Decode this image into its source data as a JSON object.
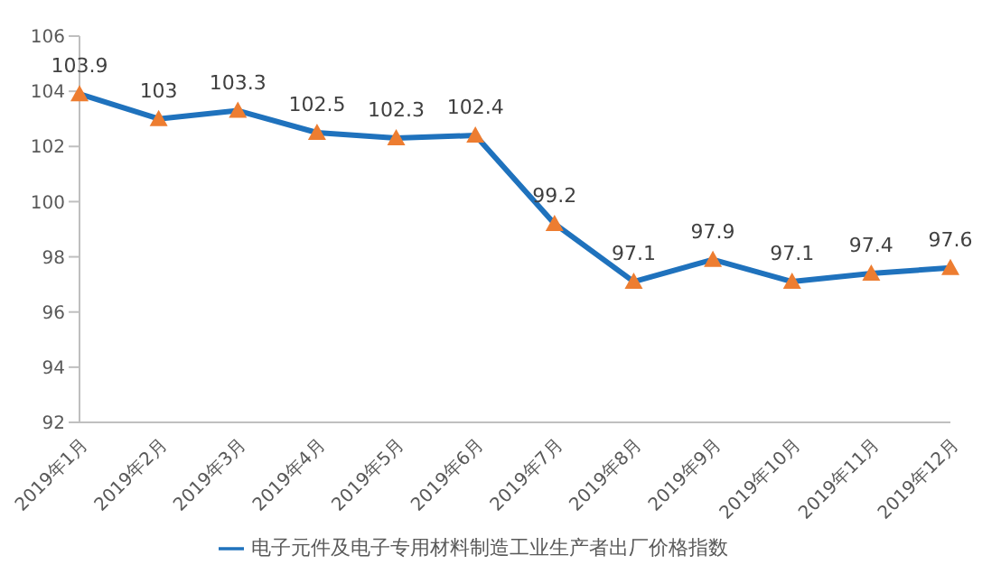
{
  "chart_data": {
    "type": "line",
    "categories": [
      "2019年1月",
      "2019年2月",
      "2019年3月",
      "2019年4月",
      "2019年5月",
      "2019年6月",
      "2019年7月",
      "2019年8月",
      "2019年9月",
      "2019年10月",
      "2019年11月",
      "2019年12月"
    ],
    "series": [
      {
        "name": "电子元件及电子专用材料制造工业生产者出厂价格指数",
        "color": "#1f72bd",
        "colors": [
          "#ed7d31",
          "#ed7d31",
          "#ed7d31",
          "#ed7d31",
          "#ed7d31",
          "#ed7d31",
          "#ed7d31",
          "#ed7d31",
          "#ed7d31",
          "#ed7d31",
          "#ed7d31",
          "#ed7d31"
        ],
        "values": [
          103.9,
          103,
          103.3,
          102.5,
          102.3,
          102.4,
          99.2,
          97.1,
          97.9,
          97.1,
          97.4,
          97.6
        ]
      }
    ],
    "ylim": [
      92,
      106
    ],
    "yticks": [
      92,
      94,
      96,
      98,
      100,
      102,
      104,
      106
    ],
    "grid": false,
    "legend": "bottom",
    "marker": "triangle",
    "data_labels": true
  }
}
